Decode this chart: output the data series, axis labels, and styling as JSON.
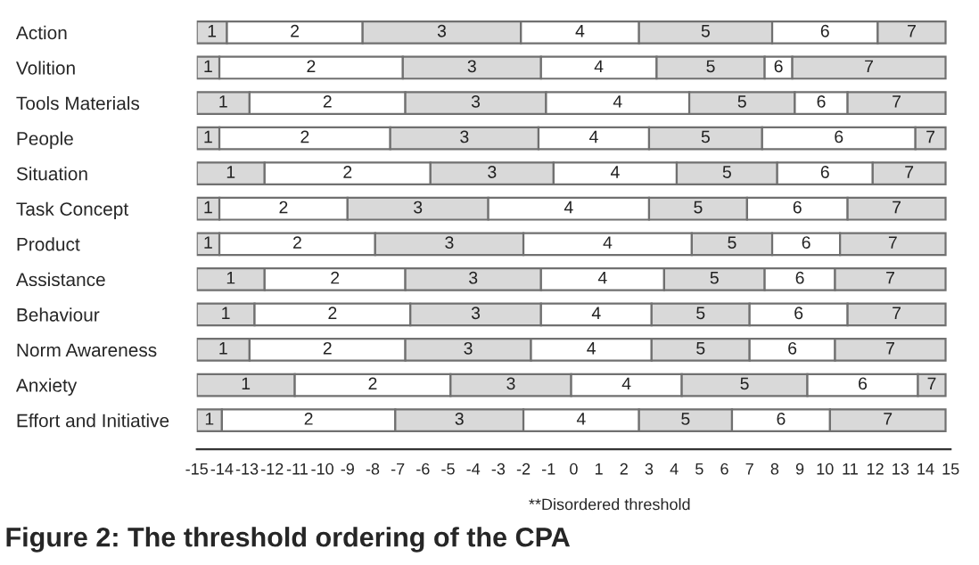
{
  "chart_data": {
    "type": "bar",
    "orientation": "horizontal",
    "title": "Figure 2: The threshold ordering of the CPA",
    "annotations": [
      "**Disordered threshold"
    ],
    "categories": [
      "Action",
      "Volition",
      "Tools Materials",
      "People",
      "Situation",
      "Task Concept",
      "Product",
      "Assistance",
      "Behaviour",
      "Norm Awareness",
      "Anxiety",
      "Effort and Initiative"
    ],
    "series": [
      {
        "name": "1",
        "color": "#d9d9d9",
        "base": [
          -15,
          -15,
          -15,
          -15,
          -15,
          -15,
          -15,
          -15,
          -15,
          -15,
          -15,
          -15
        ],
        "values": [
          1.2,
          0.9,
          2.1,
          0.9,
          2.7,
          0.9,
          0.9,
          2.7,
          2.3,
          2.1,
          3.9,
          1.0
        ]
      },
      {
        "name": "2",
        "color": "#ffffff",
        "base": [
          -13.8,
          -14.1,
          -12.9,
          -14.1,
          -12.3,
          -14.1,
          -14.1,
          -12.3,
          -12.7,
          -12.9,
          -11.1,
          -14.0
        ],
        "values": [
          5.4,
          7.3,
          6.2,
          6.8,
          6.6,
          5.1,
          6.2,
          5.6,
          6.2,
          6.2,
          6.2,
          6.9
        ]
      },
      {
        "name": "3",
        "color": "#d9d9d9",
        "base": [
          -8.4,
          -6.8,
          -6.7,
          -7.3,
          -5.7,
          -9.0,
          -7.9,
          -6.7,
          -6.5,
          -6.7,
          -4.9,
          -7.1
        ],
        "values": [
          6.3,
          5.5,
          5.6,
          5.9,
          4.9,
          5.6,
          5.9,
          5.4,
          5.2,
          5.0,
          4.8,
          5.1
        ]
      },
      {
        "name": "4",
        "color": "#ffffff",
        "base": [
          -2.1,
          -1.3,
          -1.1,
          -1.4,
          -0.8,
          -3.4,
          -2.0,
          -1.3,
          -1.3,
          -1.7,
          -0.1,
          -2.0
        ],
        "values": [
          4.7,
          4.6,
          5.7,
          4.4,
          4.9,
          6.4,
          6.7,
          4.9,
          4.4,
          4.8,
          4.4,
          4.6
        ]
      },
      {
        "name": "5",
        "color": "#d9d9d9",
        "base": [
          2.6,
          3.3,
          4.6,
          3.0,
          4.1,
          3.0,
          4.7,
          3.6,
          3.1,
          3.1,
          4.3,
          2.6
        ],
        "values": [
          5.3,
          4.3,
          4.2,
          4.5,
          4.0,
          3.9,
          3.2,
          4.0,
          3.9,
          3.9,
          5.0,
          3.7
        ]
      },
      {
        "name": "6",
        "color": "#ffffff",
        "base": [
          7.9,
          7.6,
          8.8,
          7.5,
          8.1,
          6.9,
          7.9,
          7.6,
          7.0,
          7.0,
          9.3,
          6.3
        ],
        "values": [
          4.2,
          1.1,
          2.1,
          6.1,
          3.8,
          4.0,
          2.7,
          2.8,
          3.9,
          3.4,
          4.4,
          3.9
        ]
      },
      {
        "name": "7",
        "color": "#d9d9d9",
        "base": [
          12.1,
          8.7,
          10.9,
          13.6,
          11.9,
          10.9,
          10.6,
          10.4,
          10.9,
          10.4,
          13.7,
          10.2
        ],
        "values": [
          2.7,
          6.1,
          3.9,
          1.2,
          2.9,
          3.9,
          4.2,
          4.4,
          3.9,
          4.4,
          1.1,
          4.6
        ]
      }
    ],
    "xlim": [
      -15,
      15
    ],
    "xticks": [
      -15,
      -14,
      -13,
      -12,
      -11,
      -10,
      -9,
      -8,
      -7,
      -6,
      -5,
      -4,
      -3,
      -2,
      -1,
      0,
      1,
      2,
      3,
      4,
      5,
      6,
      7,
      8,
      9,
      10,
      11,
      12,
      13,
      14,
      15
    ],
    "grid": false
  }
}
